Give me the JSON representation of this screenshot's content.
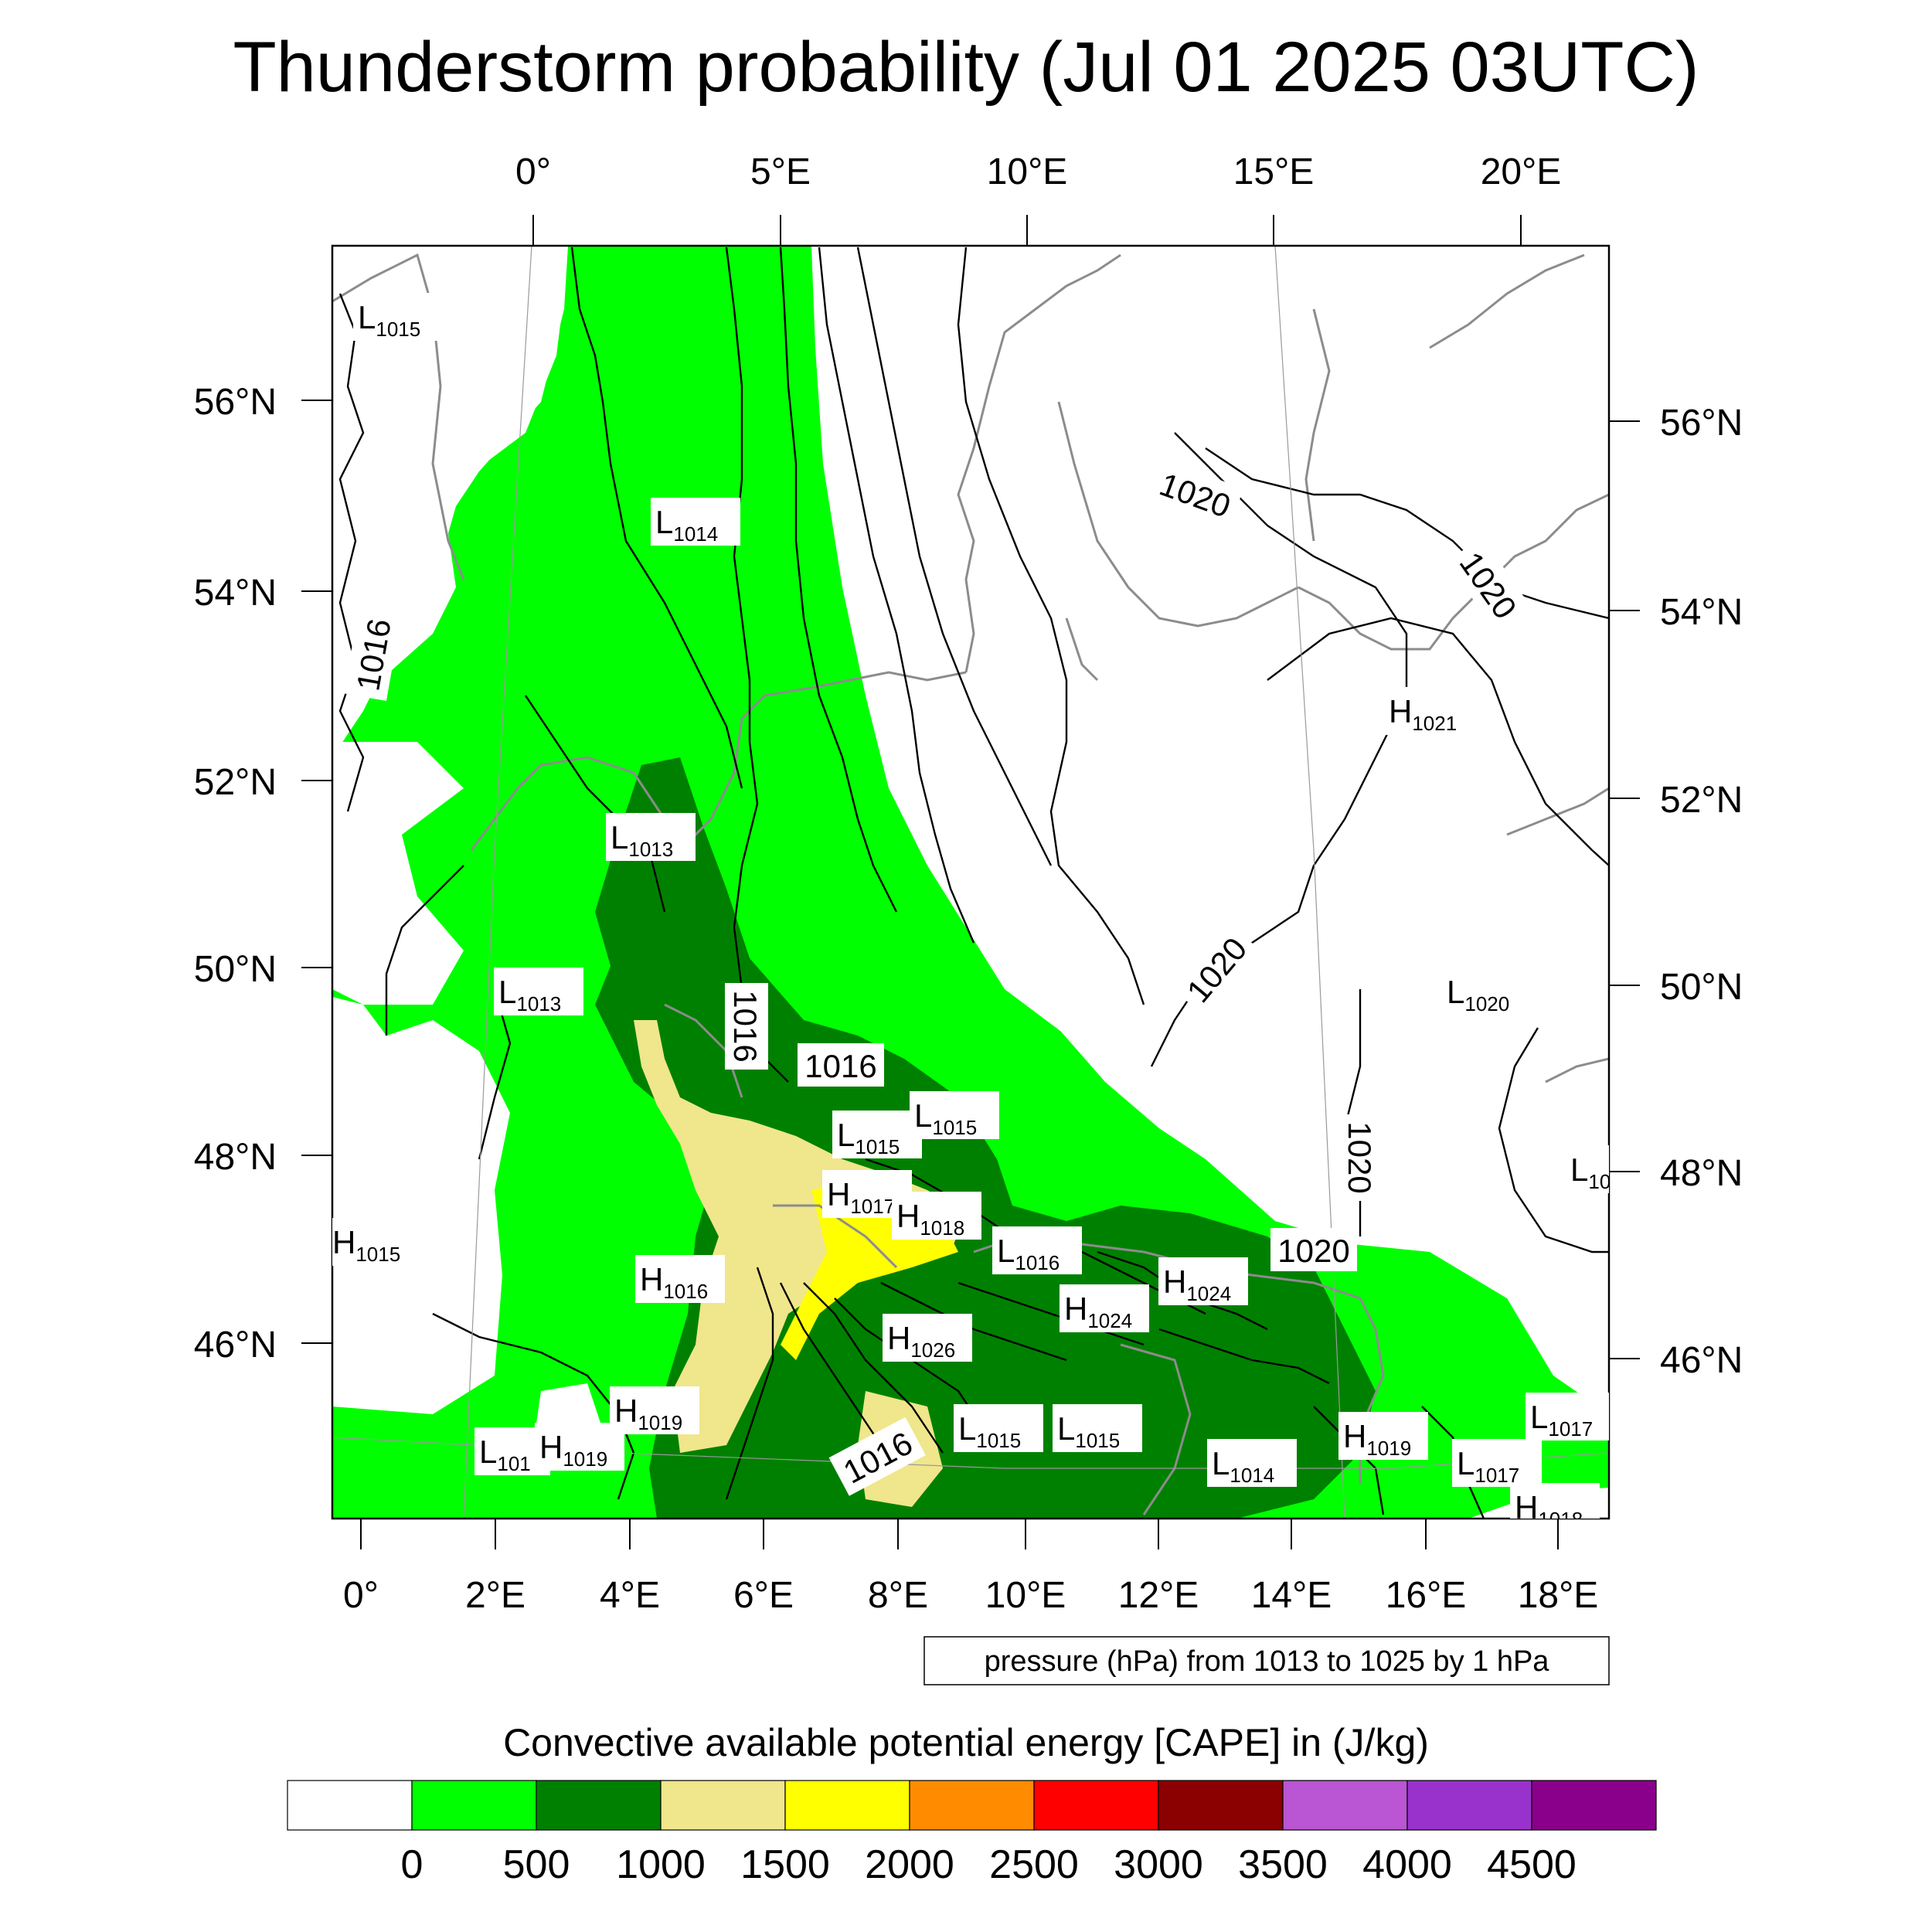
{
  "title": "Thunderstorm probability (Jul 01 2025 03UTC)",
  "top_lon_ticks": [
    "0°",
    "5°E",
    "10°E",
    "15°E",
    "20°E"
  ],
  "bottom_lon_ticks": [
    "0°",
    "2°E",
    "4°E",
    "6°E",
    "8°E",
    "10°E",
    "12°E",
    "14°E",
    "16°E",
    "18°E"
  ],
  "left_lat_ticks": [
    "56°N",
    "54°N",
    "52°N",
    "50°N",
    "48°N",
    "46°N"
  ],
  "right_lat_ticks": [
    "56°N",
    "54°N",
    "52°N",
    "50°N",
    "48°N",
    "46°N"
  ],
  "contour_info": "pressure (hPa) from 1013 to 1025 by 1 hPa",
  "colorbar_title": "Convective available potential energy [CAPE] in (J/kg)",
  "colorbar": {
    "labels": [
      "0",
      "500",
      "1000",
      "1500",
      "2000",
      "2500",
      "3000",
      "3500",
      "4000",
      "4500"
    ],
    "colors": [
      "#ffffff",
      "#00ff00",
      "#008000",
      "#f0e68c",
      "#ffff00",
      "#ff8c00",
      "#ff0000",
      "#8b0000",
      "#ba55d3",
      "#9932cc",
      "#8b008b"
    ]
  },
  "pressure_centers": [
    {
      "type": "L",
      "value": "1015"
    },
    {
      "type": "L",
      "value": "1014"
    },
    {
      "type": "L",
      "value": "1013"
    },
    {
      "type": "L",
      "value": "1013"
    },
    {
      "type": "L",
      "value": "1015"
    },
    {
      "type": "L",
      "value": "1015"
    },
    {
      "type": "H",
      "value": "1017"
    },
    {
      "type": "H",
      "value": "1018"
    },
    {
      "type": "L",
      "value": "1016"
    },
    {
      "type": "H",
      "value": "1016"
    },
    {
      "type": "H",
      "value": "1015"
    },
    {
      "type": "H",
      "value": "1024"
    },
    {
      "type": "H",
      "value": "1024"
    },
    {
      "type": "H",
      "value": "1026"
    },
    {
      "type": "H",
      "value": "1019"
    },
    {
      "type": "L",
      "value": "101"
    },
    {
      "type": "H",
      "value": "1019"
    },
    {
      "type": "L",
      "value": "1015"
    },
    {
      "type": "L",
      "value": "1015"
    },
    {
      "type": "L",
      "value": "1014"
    },
    {
      "type": "H",
      "value": "1019"
    },
    {
      "type": "L",
      "value": "1017"
    },
    {
      "type": "L",
      "value": "1017"
    },
    {
      "type": "H",
      "value": "1021"
    },
    {
      "type": "L",
      "value": "1020"
    },
    {
      "type": "L",
      "value": "10"
    },
    {
      "type": "H",
      "value": "1018"
    }
  ],
  "isobar_labels": [
    "1016",
    "1016",
    "1016",
    "1016",
    "1020",
    "1020",
    "1020",
    "1020",
    "1020"
  ]
}
